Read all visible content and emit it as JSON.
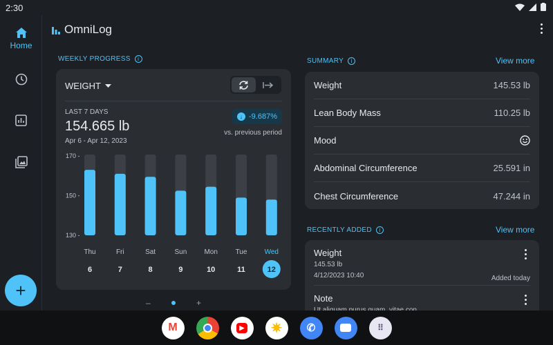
{
  "status": {
    "time": "2:30"
  },
  "app": {
    "title": "OmniLog"
  },
  "nav": {
    "home_label": "Home"
  },
  "weekly": {
    "section_label": "WEEKLY PROGRESS",
    "metric": "WEIGHT",
    "period_label": "LAST 7 DAYS",
    "value": "154.665 lb",
    "date_range": "Apr 6 - Apr 12, 2023",
    "delta": "-9.687%",
    "delta_caption": "vs. previous period"
  },
  "chart_data": {
    "type": "bar",
    "categories": [
      "Thu",
      "Fri",
      "Sat",
      "Sun",
      "Mon",
      "Tue",
      "Wed"
    ],
    "dates": [
      "6",
      "7",
      "8",
      "9",
      "10",
      "11",
      "12"
    ],
    "values": [
      163,
      161,
      159.5,
      152.5,
      154.5,
      149,
      148
    ],
    "ylim": [
      130,
      170
    ],
    "yticks": [
      "170",
      "150",
      "130"
    ],
    "selected_index": 6,
    "bar_color": "#4fc3f7",
    "track_color": "#3c4046",
    "grid": false
  },
  "summary": {
    "section_label": "SUMMARY",
    "view_more": "View more",
    "rows": [
      {
        "label": "Weight",
        "value": "145.53 lb"
      },
      {
        "label": "Lean Body Mass",
        "value": "110.25 lb"
      },
      {
        "label": "Mood",
        "value": ""
      },
      {
        "label": "Abdominal Circumference",
        "value": "25.591 in"
      },
      {
        "label": "Chest Circumference",
        "value": "47.244 in"
      }
    ]
  },
  "recent": {
    "section_label": "RECENTLY ADDED",
    "view_more": "View more",
    "entries": [
      {
        "title": "Weight",
        "sub1": "145.53 lb",
        "sub2": "4/12/2023 10:40",
        "added": "Added today"
      },
      {
        "title": "Note",
        "sub1": "Ut aliquam purus quam, vitae con"
      }
    ]
  },
  "pager": {
    "prev": "–",
    "next": "+"
  },
  "dock": {
    "apps": [
      "gmail",
      "chrome",
      "youtube",
      "photos",
      "phone",
      "messages",
      "app-drawer"
    ]
  }
}
